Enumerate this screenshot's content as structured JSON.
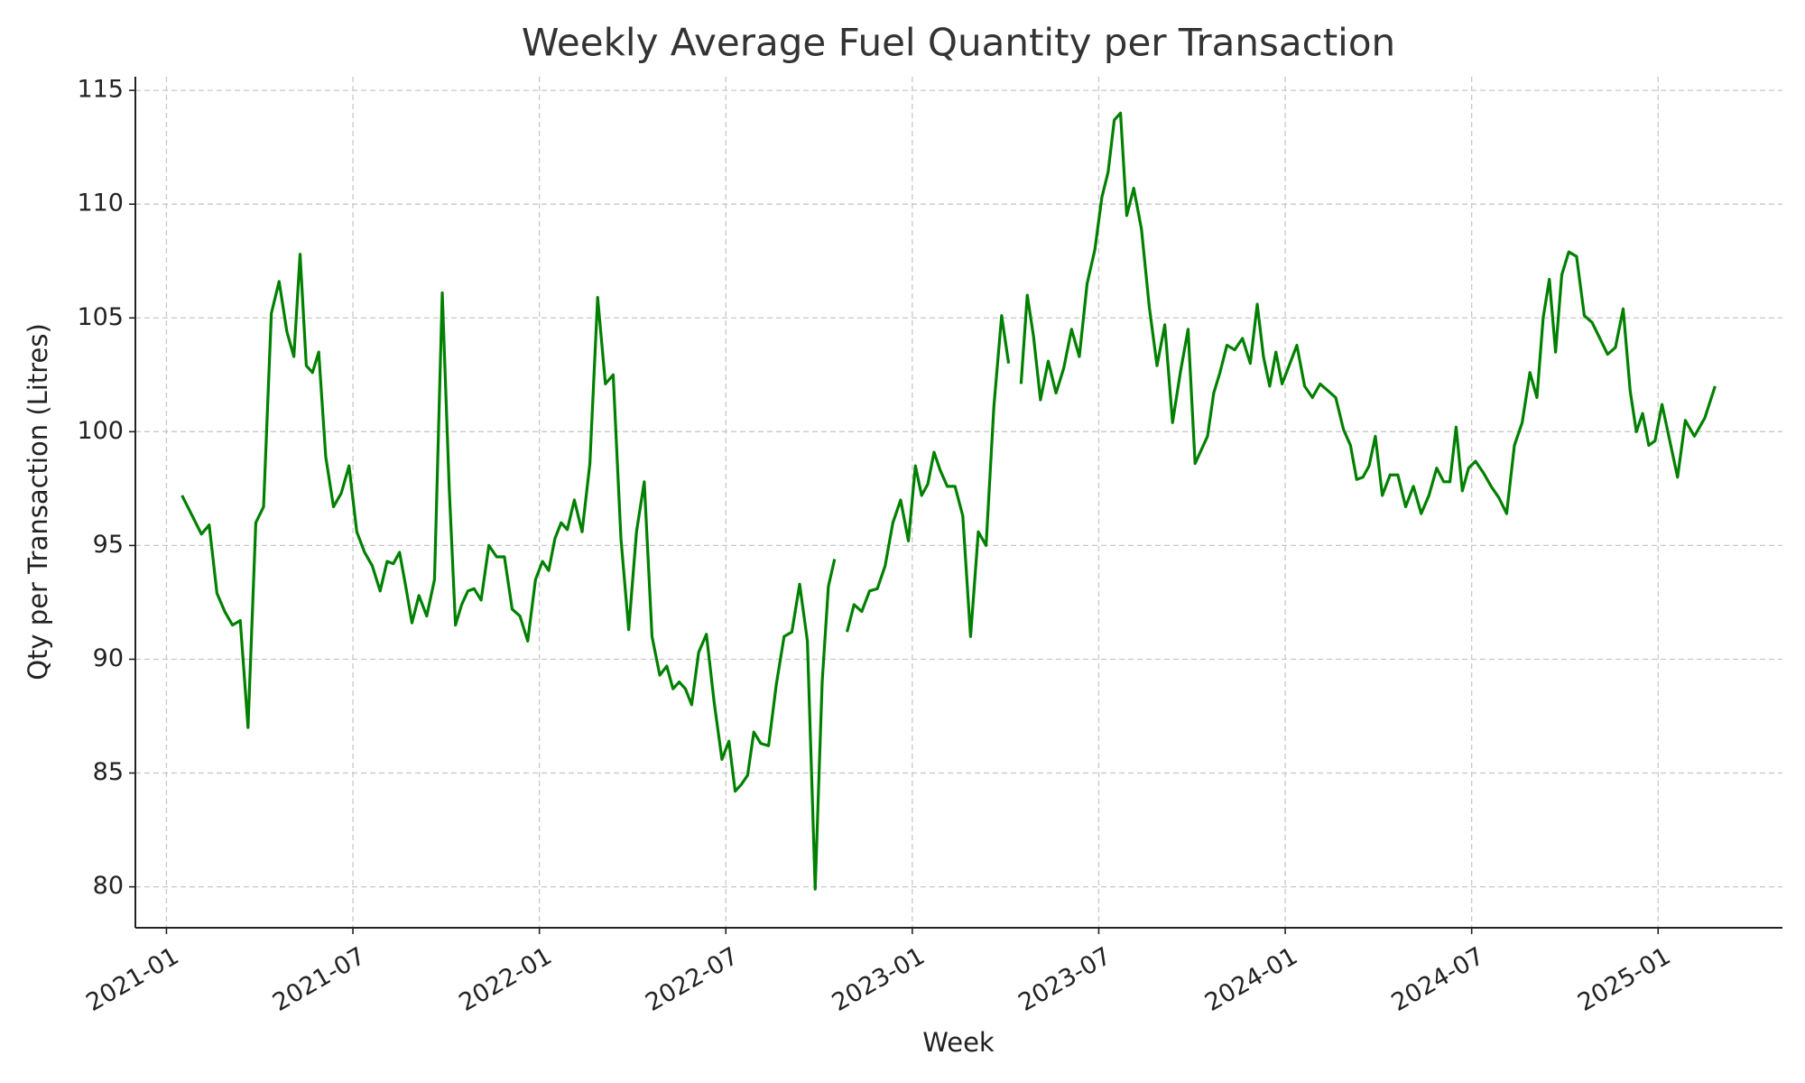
{
  "chart_data": {
    "type": "line",
    "title": "Weekly Average Fuel Quantity per Transaction",
    "x_label": "Week",
    "y_label": "Qty per Transaction (Litres)",
    "color": "#008000",
    "grid": true,
    "x": [
      "2021-01",
      "2021-02",
      "2021-02",
      "2021-02",
      "2021-02",
      "2021-03",
      "2021-03",
      "2021-03",
      "2021-03",
      "2021-04",
      "2021-04",
      "2021-04",
      "2021-04",
      "2021-05",
      "2021-05",
      "2021-05",
      "2021-05",
      "2021-05",
      "2021-06",
      "2021-06",
      "2021-06",
      "2021-06",
      "2021-07",
      "2021-07",
      "2021-07",
      "2021-07",
      "2021-08",
      "2021-08",
      "2021-08",
      "2021-08",
      "2021-08",
      "2021-09",
      "2021-09",
      "2021-09",
      "2021-09",
      "2021-10",
      "2021-10",
      "2021-10",
      "2021-10",
      "2021-10",
      "2021-11",
      "2021-11",
      "2021-11",
      "2021-11",
      "2021-12",
      "2021-12",
      "2021-12",
      "2021-12",
      "2022-01",
      "2022-01",
      "2022-01",
      "2022-01",
      "2022-01",
      "2022-02",
      "2022-02",
      "2022-02",
      "2022-02",
      "2022-03",
      "2022-03",
      "2022-03",
      "2022-03",
      "2022-04",
      "2022-04",
      "2022-04",
      "2022-04",
      "2022-05",
      "2022-05",
      "2022-05",
      "2022-05",
      "2022-05",
      "2022-06",
      "2022-06",
      "2022-06",
      "2022-06",
      "2022-07",
      "2022-07",
      "2022-07",
      "2022-07",
      "2022-07",
      "2022-08",
      "2022-08",
      "2022-08",
      "2022-08",
      "2022-09",
      "2022-09",
      "2022-09",
      "2022-09",
      "2022-10",
      "2022-10",
      "2022-10",
      "2022-10",
      "2022-10",
      "2022-11",
      "2022-11",
      "2022-11",
      "2022-11",
      "2022-12",
      "2022-12",
      "2022-12",
      "2022-12",
      "2023-01",
      "2023-01",
      "2023-01",
      "2023-01",
      "2023-01",
      "2023-02",
      "2023-02",
      "2023-02",
      "2023-02",
      "2023-03",
      "2023-03",
      "2023-03",
      "2023-03",
      "2023-04",
      "2023-04",
      "2023-04",
      "2023-04",
      "2023-04",
      "2023-05",
      "2023-05",
      "2023-05",
      "2023-05",
      "2023-06",
      "2023-06",
      "2023-06",
      "2023-06",
      "2023-07",
      "2023-07",
      "2023-07",
      "2023-07",
      "2023-07",
      "2023-08",
      "2023-08",
      "2023-08",
      "2023-08",
      "2023-09",
      "2023-09",
      "2023-09",
      "2023-09",
      "2023-10",
      "2023-10",
      "2023-10",
      "2023-10",
      "2023-10",
      "2023-11",
      "2023-11",
      "2023-11",
      "2023-11",
      "2023-12",
      "2023-12",
      "2023-12",
      "2023-12",
      "2023-12",
      "2024-01",
      "2024-01",
      "2024-01",
      "2024-01",
      "2024-02",
      "2024-02",
      "2024-02",
      "2024-02",
      "2024-03",
      "2024-03",
      "2024-03",
      "2024-03",
      "2024-03",
      "2024-04",
      "2024-04",
      "2024-04",
      "2024-04",
      "2024-05",
      "2024-05",
      "2024-05",
      "2024-05",
      "2024-06",
      "2024-06",
      "2024-06",
      "2024-06",
      "2024-06",
      "2024-07",
      "2024-07",
      "2024-07",
      "2024-07",
      "2024-08",
      "2024-08",
      "2024-08",
      "2024-08",
      "2024-09",
      "2024-09",
      "2024-09",
      "2024-09",
      "2024-09",
      "2024-10",
      "2024-10",
      "2024-10",
      "2024-10",
      "2024-11",
      "2024-11",
      "2024-11",
      "2024-11",
      "2024-12",
      "2024-12",
      "2024-12",
      "2024-12",
      "2024-12",
      "2025-01",
      "2025-01",
      "2025-01",
      "2025-01",
      "2025-02",
      "2025-02",
      "2025-02"
    ],
    "values": [
      97.2,
      95.5,
      95.9,
      92.9,
      92.1,
      91.5,
      91.7,
      87.0,
      96.0,
      96.7,
      105.2,
      106.6,
      104.4,
      103.3,
      107.8,
      102.9,
      102.6,
      103.5,
      98.9,
      96.7,
      97.3,
      98.5,
      95.6,
      94.7,
      94.1,
      93.0,
      94.3,
      94.2,
      94.7,
      93.2,
      91.6,
      92.8,
      91.9,
      93.5,
      106.1,
      97.5,
      91.5,
      92.4,
      93.0,
      93.1,
      92.6,
      95.0,
      94.5,
      94.5,
      92.2,
      91.9,
      90.8,
      93.5,
      94.3,
      93.9,
      95.3,
      96.0,
      95.7,
      97.0,
      95.6,
      98.6,
      105.9,
      102.1,
      102.5,
      95.3,
      91.3,
      95.6,
      97.8,
      91.0,
      89.3,
      89.7,
      88.7,
      89.0,
      88.7,
      88.0,
      90.3,
      91.1,
      88.1,
      85.6,
      86.4,
      84.2,
      84.5,
      84.9,
      86.8,
      86.3,
      86.2,
      88.9,
      91.0,
      91.2,
      93.3,
      90.8,
      79.9,
      89.0,
      93.2,
      94.4,
      null,
      91.2,
      92.4,
      92.1,
      93.0,
      93.1,
      94.1,
      96.0,
      97.0,
      95.2,
      98.5,
      97.2,
      97.7,
      99.1,
      98.3,
      97.6,
      97.6,
      96.3,
      91.0,
      95.6,
      95.0,
      101.1,
      105.1,
      103.0,
      null,
      102.1,
      106.0,
      104.2,
      101.4,
      103.1,
      101.7,
      102.8,
      104.5,
      103.3,
      106.5,
      108.0,
      110.3,
      111.4,
      113.7,
      114.0,
      109.5,
      110.7,
      108.9,
      105.5,
      102.9,
      104.7,
      100.4,
      102.6,
      104.5,
      98.6,
      99.2,
      99.8,
      101.7,
      102.6,
      103.8,
      103.6,
      104.1,
      103.0,
      105.6,
      103.3,
      102.0,
      103.5,
      102.1,
      102.9,
      103.8,
      102.0,
      101.5,
      102.1,
      101.8,
      101.5,
      100.1,
      99.4,
      97.9,
      98.0,
      98.5,
      99.8,
      97.2,
      98.1,
      98.1,
      96.7,
      97.6,
      96.4,
      97.2,
      98.4,
      97.8,
      97.8,
      100.2,
      97.4,
      98.4,
      98.7,
      98.2,
      97.6,
      97.1,
      96.4,
      99.4,
      100.4,
      102.6,
      101.5,
      105.0,
      106.7,
      103.5,
      106.9,
      107.9,
      107.7,
      105.1,
      104.8,
      104.1,
      103.4,
      103.7,
      105.4,
      101.8,
      100.0,
      100.8,
      99.4,
      99.6,
      101.2,
      99.6,
      98.0,
      100.5,
      99.8,
      100.6,
      102.0
    ],
    "xlim": [
      "2020-12",
      "2025-05"
    ],
    "xticks": [
      "2021-01",
      "2021-07",
      "2022-01",
      "2022-07",
      "2023-01",
      "2023-07",
      "2024-01",
      "2024-07",
      "2025-01"
    ],
    "ylim": [
      78.2,
      115.6
    ],
    "yticks": [
      80,
      85,
      90,
      95,
      100,
      105,
      110,
      115
    ]
  }
}
